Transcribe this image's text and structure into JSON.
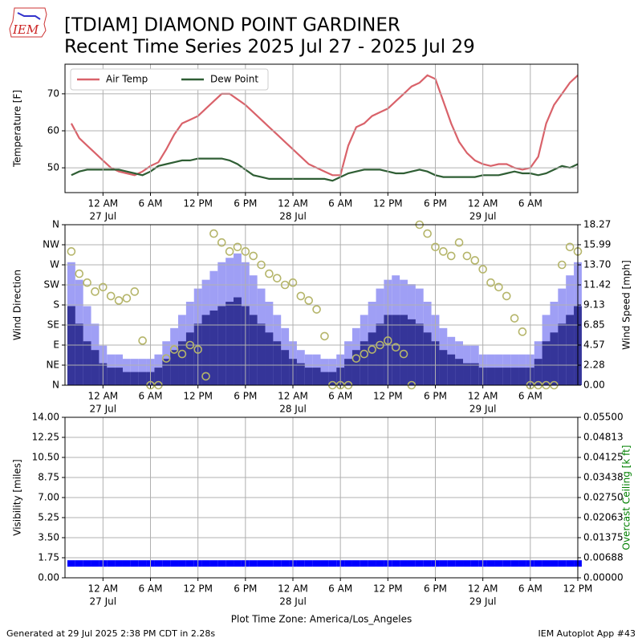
{
  "header": {
    "logo": "IEM",
    "title": "[TDIAM] DIAMOND POINT GARDINER",
    "subtitle": "Recent Time Series 2025 Jul 27 - 2025 Jul 29"
  },
  "footer": {
    "left": "Generated at 29 Jul 2025 2:38 PM CDT in 2.28s",
    "right": "IEM Autoplot App #43"
  },
  "chart_data": [
    {
      "type": "line",
      "ylabel": "Temperature [F]",
      "legend": "upper left",
      "grid": true,
      "x": [
        -4,
        -3,
        -2,
        -1,
        0,
        1,
        2,
        3,
        4,
        5,
        6,
        7,
        8,
        9,
        10,
        11,
        12,
        13,
        14,
        15,
        16,
        17,
        18,
        19,
        20,
        21,
        22,
        23,
        24,
        25,
        26,
        27,
        28,
        29,
        30,
        31,
        32,
        33,
        34,
        35,
        36,
        37,
        38,
        39,
        40,
        41,
        42,
        43,
        44,
        45,
        46,
        47,
        48,
        49,
        50,
        51,
        52,
        53,
        54,
        55,
        56,
        57,
        58,
        59,
        60
      ],
      "xlim": [
        -4.8,
        60
      ],
      "xticks": [
        {
          "value": 0,
          "label": "12 AM",
          "date": "27 Jul"
        },
        {
          "value": 6,
          "label": "6 AM"
        },
        {
          "value": 12,
          "label": "12 PM"
        },
        {
          "value": 18,
          "label": "6 PM"
        },
        {
          "value": 24,
          "label": "12 AM",
          "date": "28 Jul"
        },
        {
          "value": 30,
          "label": "6 AM"
        },
        {
          "value": 36,
          "label": "12 PM"
        },
        {
          "value": 42,
          "label": "6 PM"
        },
        {
          "value": 48,
          "label": "12 AM",
          "date": "29 Jul"
        },
        {
          "value": 54,
          "label": "6 AM"
        }
      ],
      "ylim": [
        43.3,
        78
      ],
      "yticks": [
        50,
        60,
        70
      ],
      "series": [
        {
          "name": "Air Temp",
          "color": "#d9626a",
          "values": [
            62,
            58,
            56,
            54,
            52,
            50,
            49,
            48.5,
            48,
            49,
            50.5,
            51.5,
            55,
            59,
            62,
            63,
            64,
            66,
            68,
            70,
            70,
            68.5,
            67,
            65,
            63,
            61,
            59,
            57,
            55,
            53,
            51,
            50,
            49,
            48,
            48,
            56,
            61,
            62,
            64,
            65,
            66,
            68,
            70,
            72,
            73,
            75,
            74,
            68,
            62,
            57,
            54,
            52,
            51,
            50.5,
            51,
            51,
            50,
            49.5,
            50,
            53,
            62,
            67,
            70,
            73,
            75
          ]
        },
        {
          "name": "Dew Point",
          "color": "#2f5e34",
          "values": [
            48,
            49,
            49.5,
            49.5,
            49.5,
            49.5,
            49.5,
            49,
            48.5,
            48,
            49,
            50.5,
            51,
            51.5,
            52,
            52,
            52.5,
            52.5,
            52.5,
            52.5,
            52,
            51,
            49.5,
            48,
            47.5,
            47,
            47,
            47,
            47,
            47,
            47,
            47,
            47,
            46.5,
            47.5,
            48.5,
            49,
            49.5,
            49.5,
            49.5,
            49,
            48.5,
            48.5,
            49,
            49.5,
            49,
            48,
            47.5,
            47.5,
            47.5,
            47.5,
            47.5,
            48,
            48,
            48,
            48.5,
            49,
            48.5,
            48.5,
            48,
            48.5,
            49.5,
            50.5,
            50,
            51
          ]
        }
      ]
    },
    {
      "type": "wind",
      "ylabel": "Wind Direction",
      "y2label": "Wind Speed [mph]",
      "grid": true,
      "x": [
        -4,
        -3,
        -2,
        -1,
        0,
        1,
        2,
        3,
        4,
        5,
        6,
        7,
        8,
        9,
        10,
        11,
        12,
        13,
        14,
        15,
        16,
        17,
        18,
        19,
        20,
        21,
        22,
        23,
        24,
        25,
        26,
        27,
        28,
        29,
        30,
        31,
        32,
        33,
        34,
        35,
        36,
        37,
        38,
        39,
        40,
        41,
        42,
        43,
        44,
        45,
        46,
        47,
        48,
        49,
        50,
        51,
        52,
        53,
        54,
        55,
        56,
        57,
        58,
        59,
        60
      ],
      "xlim": [
        -4.8,
        60
      ],
      "xticks": [
        {
          "value": 0,
          "label": "12 AM",
          "date": "27 Jul"
        },
        {
          "value": 6,
          "label": "6 AM"
        },
        {
          "value": 12,
          "label": "12 PM"
        },
        {
          "value": 18,
          "label": "6 PM"
        },
        {
          "value": 24,
          "label": "12 AM",
          "date": "28 Jul"
        },
        {
          "value": 30,
          "label": "6 AM"
        },
        {
          "value": 36,
          "label": "12 PM"
        },
        {
          "value": 42,
          "label": "6 PM"
        },
        {
          "value": 48,
          "label": "12 AM",
          "date": "29 Jul"
        },
        {
          "value": 54,
          "label": "6 AM"
        }
      ],
      "ylim": [
        0,
        360
      ],
      "yticks": [
        {
          "value": 0,
          "label": "N"
        },
        {
          "value": 45,
          "label": "NE"
        },
        {
          "value": 90,
          "label": "E"
        },
        {
          "value": 135,
          "label": "SE"
        },
        {
          "value": 180,
          "label": "S"
        },
        {
          "value": 225,
          "label": "SW"
        },
        {
          "value": 270,
          "label": "W"
        },
        {
          "value": 315,
          "label": "NW"
        },
        {
          "value": 360,
          "label": "N"
        }
      ],
      "y2lim": [
        0,
        18.27
      ],
      "y2ticks": [
        {
          "value": 0,
          "label": "0.00"
        },
        2.28,
        4.57,
        6.85,
        9.13,
        11.42,
        {
          "value": 13.7,
          "label": "13.70"
        },
        15.99,
        18.27
      ],
      "series": [
        {
          "kind": "bar",
          "axis": "y2",
          "color": "#9f9ff5",
          "values": [
            14,
            12,
            9,
            7,
            4.5,
            3.5,
            3.5,
            3,
            3,
            3,
            3,
            3.5,
            5,
            6.5,
            8,
            9.5,
            11,
            12,
            13,
            14,
            14.5,
            15,
            14,
            12.5,
            11,
            9.5,
            8,
            6.5,
            5,
            4,
            3.5,
            3.5,
            3,
            3,
            3.5,
            5,
            6.5,
            8,
            9.5,
            11,
            12,
            12.5,
            12,
            11.5,
            11,
            9.5,
            8,
            6.5,
            5.5,
            5,
            4.5,
            4.5,
            3.5,
            3.5,
            3.5,
            3.5,
            3.5,
            3.5,
            3.5,
            5,
            8,
            9.5,
            11,
            12.5,
            14
          ]
        },
        {
          "kind": "bar",
          "axis": "y2",
          "color": "#353599",
          "values": [
            9,
            7,
            5,
            4,
            2.5,
            2,
            2,
            1.5,
            1.5,
            1.5,
            1.5,
            2,
            3,
            4,
            5,
            6,
            7,
            8,
            8.5,
            9,
            9.5,
            10,
            9,
            8,
            7,
            6,
            5,
            4,
            3,
            2.5,
            2,
            2,
            1.5,
            1.5,
            2,
            3,
            4,
            5,
            6,
            7,
            8,
            8,
            8,
            7.5,
            7,
            6,
            5,
            4,
            3.5,
            3,
            2.5,
            2.5,
            2,
            2,
            2,
            2,
            2,
            2,
            2,
            3,
            5,
            6,
            7,
            8,
            9
          ]
        },
        {
          "kind": "scatter",
          "color": "#b5b56a",
          "values": [
            300,
            250,
            230,
            210,
            220,
            200,
            190,
            195,
            210,
            100,
            0,
            0,
            60,
            80,
            70,
            90,
            80,
            20,
            340,
            320,
            300,
            310,
            300,
            290,
            270,
            250,
            240,
            225,
            230,
            200,
            190,
            170,
            110,
            0,
            0,
            0,
            60,
            70,
            80,
            90,
            100,
            85,
            70,
            0,
            360,
            340,
            310,
            300,
            290,
            320,
            290,
            280,
            260,
            230,
            220,
            200,
            150,
            120,
            0,
            0,
            0,
            0,
            270,
            310,
            300
          ]
        }
      ]
    },
    {
      "type": "visibility",
      "ylabel": "Visibility [miles]",
      "y2label": "Overcast Ceiling [k ft]",
      "y2color": "#008000",
      "xlabel": "Plot Time Zone: America/Los_Angeles",
      "grid": true,
      "x": [
        -4,
        -3,
        -2,
        -1,
        0,
        1,
        2,
        3,
        4,
        5,
        6,
        7,
        8,
        9,
        10,
        11,
        12,
        13,
        14,
        15,
        16,
        17,
        18,
        19,
        20,
        21,
        22,
        23,
        24,
        25,
        26,
        27,
        28,
        29,
        30,
        31,
        32,
        33,
        34,
        35,
        36,
        37,
        38,
        39,
        40,
        41,
        42,
        43,
        44,
        45,
        46,
        47,
        48,
        49,
        50,
        51,
        52,
        53,
        54,
        55,
        56,
        57,
        58,
        59,
        60
      ],
      "xlim": [
        -4.8,
        60
      ],
      "xticks": [
        {
          "value": 0,
          "label": "12 AM",
          "date": "27 Jul"
        },
        {
          "value": 6,
          "label": "6 AM"
        },
        {
          "value": 12,
          "label": "12 PM"
        },
        {
          "value": 18,
          "label": "6 PM"
        },
        {
          "value": 24,
          "label": "12 AM",
          "date": "28 Jul"
        },
        {
          "value": 30,
          "label": "6 AM"
        },
        {
          "value": 36,
          "label": "12 PM"
        },
        {
          "value": 42,
          "label": "6 PM"
        },
        {
          "value": 48,
          "label": "12 AM",
          "date": "29 Jul"
        },
        {
          "value": 54,
          "label": "6 AM"
        },
        {
          "value": 60,
          "label": "12 PM"
        }
      ],
      "ylim": [
        0,
        14
      ],
      "yticks": [
        {
          "value": 0,
          "label": "0.00"
        },
        1.75,
        {
          "value": 3.5,
          "label": "3.50"
        },
        5.25,
        {
          "value": 7,
          "label": "7.00"
        },
        8.75,
        {
          "value": 10.5,
          "label": "10.50"
        },
        12.25,
        {
          "value": 14,
          "label": "14.00"
        }
      ],
      "y2lim": [
        0,
        0.055
      ],
      "y2ticks": [
        {
          "value": 0,
          "label": "0.00000"
        },
        0.00688,
        {
          "value": 0.01375,
          "label": "0.01375"
        },
        0.02063,
        {
          "value": 0.0275,
          "label": "0.02750"
        },
        0.03438,
        0.04125,
        0.04813,
        {
          "value": 0.055,
          "label": "0.05500"
        }
      ],
      "series": [
        {
          "kind": "marker",
          "color": "#0000ff",
          "values": [
            1.25,
            1.25,
            1.25,
            1.25,
            1.25,
            1.25,
            1.25,
            1.25,
            1.25,
            1.25,
            1.25,
            1.25,
            1.25,
            1.25,
            1.25,
            1.25,
            1.25,
            1.25,
            1.25,
            1.25,
            1.25,
            1.25,
            1.25,
            1.25,
            1.25,
            1.25,
            1.25,
            1.25,
            1.25,
            1.25,
            1.25,
            1.25,
            1.25,
            1.25,
            1.25,
            1.25,
            1.25,
            1.25,
            1.25,
            1.25,
            1.25,
            1.25,
            1.25,
            1.25,
            1.25,
            1.25,
            1.25,
            1.25,
            1.25,
            1.25,
            1.25,
            1.25,
            1.25,
            1.25,
            1.25,
            1.25,
            1.25,
            1.25,
            1.25,
            1.25,
            1.25,
            1.25,
            1.25,
            1.25,
            1.25
          ]
        }
      ]
    }
  ]
}
